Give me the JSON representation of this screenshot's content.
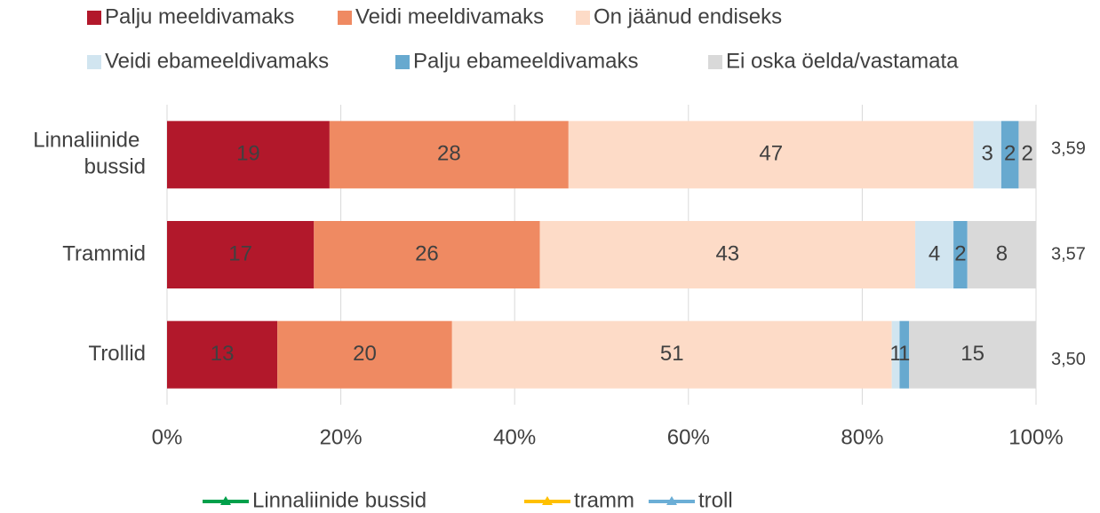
{
  "chart_data": {
    "type": "stacked_bar_horizontal",
    "categories": [
      "Linnaliinide bussid",
      "Trammid",
      "Trollid"
    ],
    "series": [
      {
        "name": "Palju meeldivamaks",
        "color": "#b2182b",
        "values": [
          18.7,
          16.9,
          12.7
        ],
        "value_labels": [
          "19",
          "17",
          "13"
        ]
      },
      {
        "name": "Veidi meeldivamaks",
        "color": "#ef8a62",
        "values": [
          27.5,
          26.0,
          20.1
        ],
        "value_labels": [
          "28",
          "26",
          "20"
        ]
      },
      {
        "name": "On jäänud endiseks",
        "color": "#fddbc7",
        "values": [
          46.6,
          43.2,
          50.6
        ],
        "value_labels": [
          "47",
          "43",
          "51"
        ]
      },
      {
        "name": "Veidi ebameeldivamaks",
        "color": "#d1e5f0",
        "values": [
          3.2,
          4.4,
          0.9
        ],
        "value_labels": [
          "3",
          "4",
          "1"
        ]
      },
      {
        "name": "Palju ebameeldivamaks",
        "color": "#67a9cf",
        "values": [
          2.0,
          1.6,
          1.1
        ],
        "value_labels": [
          "2",
          "2",
          "1"
        ]
      },
      {
        "name": "Ei oska öelda/vastamata",
        "color": "#d9d9d9",
        "values": [
          2.0,
          7.9,
          14.6
        ],
        "value_labels": [
          "2",
          "8",
          "15"
        ]
      }
    ],
    "xlim": [
      0,
      100
    ],
    "xticks": [
      {
        "value": 0,
        "label": "0%"
      },
      {
        "value": 20,
        "label": "20%"
      },
      {
        "value": 40,
        "label": "40%"
      },
      {
        "value": 60,
        "label": "60%"
      },
      {
        "value": 80,
        "label": "80%"
      },
      {
        "value": 100,
        "label": "100%"
      }
    ],
    "grid": true,
    "score_series": [
      {
        "name": "Linnaliinide bussid",
        "color": "#00a04b",
        "values": [
          3.59
        ],
        "value_labels": [
          "3,59"
        ]
      },
      {
        "name": "tramm",
        "color": "#ffc000",
        "values": [
          3.57
        ],
        "value_labels": [
          "3,57"
        ]
      },
      {
        "name": "troll",
        "color": "#6baed6",
        "values": [
          3.5
        ],
        "value_labels": [
          "3,50"
        ]
      }
    ]
  }
}
